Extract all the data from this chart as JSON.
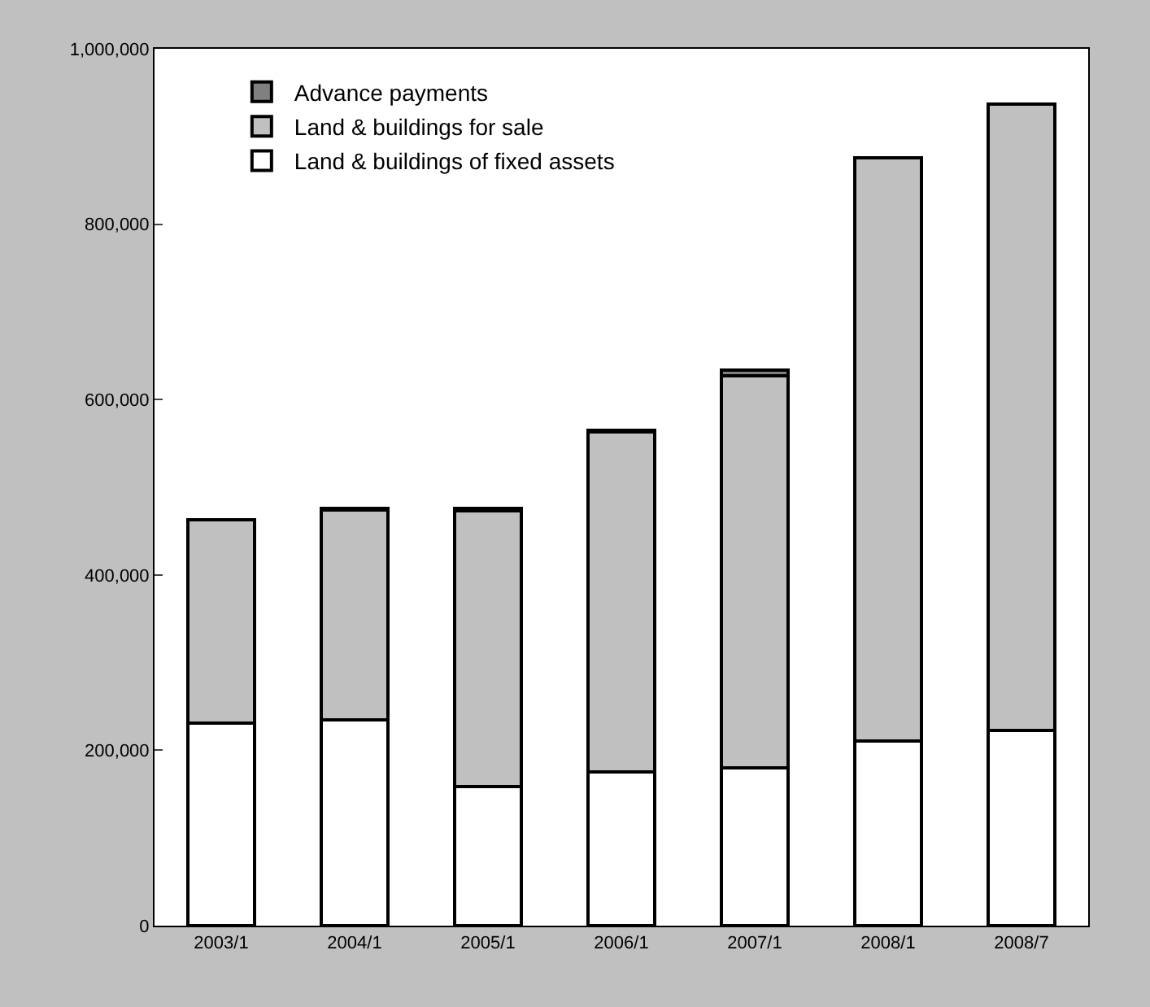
{
  "chart_data": {
    "type": "bar",
    "stacked": true,
    "categories": [
      "2003/1",
      "2004/1",
      "2005/1",
      "2006/1",
      "2007/1",
      "2008/1",
      "2008/7"
    ],
    "series": [
      {
        "name": "Land & buildings of fixed assets",
        "color": "#ffffff",
        "values": [
          231000,
          235000,
          159000,
          175000,
          180000,
          211000,
          223000
        ]
      },
      {
        "name": "Land & buildings for sale",
        "color": "#c0c0c0",
        "values": [
          232000,
          239000,
          314000,
          388000,
          447000,
          665000,
          714000
        ]
      },
      {
        "name": "Advance payments",
        "color": "#808080",
        "values": [
          null,
          2000,
          3000,
          2000,
          7000,
          null,
          null
        ]
      }
    ],
    "ylim": [
      0,
      1000000
    ],
    "yticks": [
      {
        "value": 0,
        "label": "0"
      },
      {
        "value": 200000,
        "label": "200,000"
      },
      {
        "value": 400000,
        "label": "400,000"
      },
      {
        "value": 600000,
        "label": "600,000"
      },
      {
        "value": 800000,
        "label": "800,000"
      },
      {
        "value": 1000000,
        "label": "1,000,000"
      }
    ],
    "legend": "top left"
  }
}
